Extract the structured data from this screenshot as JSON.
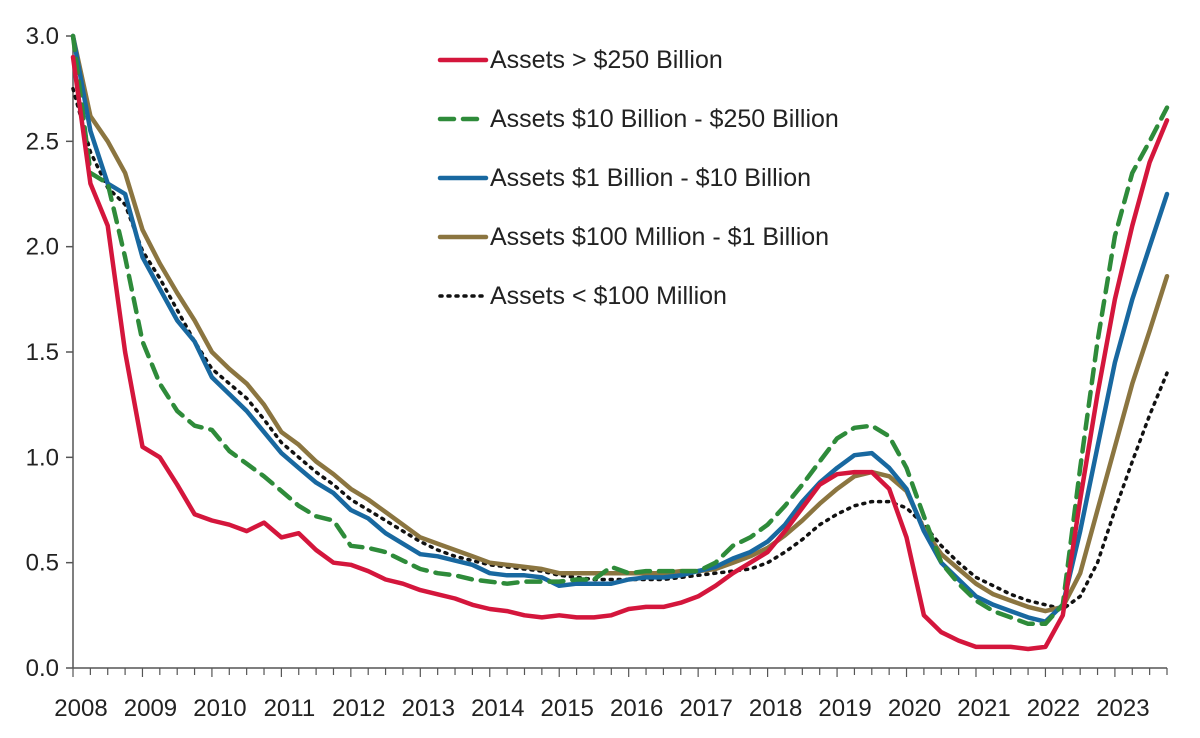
{
  "chart_data": {
    "type": "line",
    "title": "",
    "xlabel": "",
    "ylabel": "",
    "xlim": [
      2008.0,
      2023.75
    ],
    "ylim": [
      0,
      3.0
    ],
    "yticks": [
      "0.0",
      "0.5",
      "1.0",
      "1.5",
      "2.0",
      "2.5",
      "3.0"
    ],
    "xticks": [
      "2008",
      "2009",
      "2010",
      "2011",
      "2012",
      "2013",
      "2014",
      "2015",
      "2016",
      "2017",
      "2018",
      "2019",
      "2020",
      "2021",
      "2022",
      "2023"
    ],
    "grid": false,
    "legend_position": "top-center",
    "x": [
      2008.0,
      2008.25,
      2008.5,
      2008.75,
      2009.0,
      2009.25,
      2009.5,
      2009.75,
      2010.0,
      2010.25,
      2010.5,
      2010.75,
      2011.0,
      2011.25,
      2011.5,
      2011.75,
      2012.0,
      2012.25,
      2012.5,
      2012.75,
      2013.0,
      2013.25,
      2013.5,
      2013.75,
      2014.0,
      2014.25,
      2014.5,
      2014.75,
      2015.0,
      2015.25,
      2015.5,
      2015.75,
      2016.0,
      2016.25,
      2016.5,
      2016.75,
      2017.0,
      2017.25,
      2017.5,
      2017.75,
      2018.0,
      2018.25,
      2018.5,
      2018.75,
      2019.0,
      2019.25,
      2019.5,
      2019.75,
      2020.0,
      2020.25,
      2020.5,
      2020.75,
      2021.0,
      2021.25,
      2021.5,
      2021.75,
      2022.0,
      2022.25,
      2022.5,
      2022.75,
      2023.0,
      2023.25,
      2023.5,
      2023.75
    ],
    "series": [
      {
        "name": "Assets > $250 Billion",
        "color": "#d4163c",
        "style": "solid",
        "values": [
          2.9,
          2.3,
          2.1,
          1.5,
          1.05,
          1.0,
          0.87,
          0.73,
          0.7,
          0.68,
          0.65,
          0.69,
          0.62,
          0.64,
          0.56,
          0.5,
          0.49,
          0.46,
          0.42,
          0.4,
          0.37,
          0.35,
          0.33,
          0.3,
          0.28,
          0.27,
          0.25,
          0.24,
          0.25,
          0.24,
          0.24,
          0.25,
          0.28,
          0.29,
          0.29,
          0.31,
          0.34,
          0.39,
          0.45,
          0.5,
          0.55,
          0.65,
          0.76,
          0.87,
          0.92,
          0.93,
          0.93,
          0.85,
          0.62,
          0.25,
          0.17,
          0.13,
          0.1,
          0.1,
          0.1,
          0.09,
          0.1,
          0.25,
          0.8,
          1.3,
          1.75,
          2.1,
          2.4,
          2.6
        ]
      },
      {
        "name": "Assets  $10 Billion - $250 Billion",
        "color": "#2e8b3a",
        "style": "dashed",
        "values": [
          3.0,
          2.35,
          2.3,
          1.95,
          1.55,
          1.35,
          1.22,
          1.15,
          1.13,
          1.03,
          0.97,
          0.91,
          0.84,
          0.77,
          0.72,
          0.7,
          0.58,
          0.57,
          0.55,
          0.51,
          0.47,
          0.45,
          0.44,
          0.42,
          0.41,
          0.4,
          0.41,
          0.41,
          0.41,
          0.42,
          0.42,
          0.48,
          0.45,
          0.46,
          0.46,
          0.46,
          0.46,
          0.5,
          0.58,
          0.62,
          0.68,
          0.77,
          0.87,
          0.98,
          1.09,
          1.14,
          1.15,
          1.1,
          0.95,
          0.72,
          0.5,
          0.4,
          0.32,
          0.27,
          0.24,
          0.21,
          0.21,
          0.3,
          0.95,
          1.55,
          2.05,
          2.35,
          2.5,
          2.66
        ]
      },
      {
        "name": "Assets $1 Billion - $10 Billion",
        "color": "#1868a0",
        "style": "solid",
        "values": [
          3.0,
          2.55,
          2.3,
          2.25,
          1.95,
          1.8,
          1.65,
          1.55,
          1.38,
          1.3,
          1.22,
          1.12,
          1.02,
          0.95,
          0.88,
          0.83,
          0.75,
          0.71,
          0.64,
          0.59,
          0.54,
          0.53,
          0.51,
          0.49,
          0.45,
          0.44,
          0.44,
          0.43,
          0.39,
          0.4,
          0.4,
          0.4,
          0.42,
          0.43,
          0.43,
          0.44,
          0.46,
          0.48,
          0.52,
          0.55,
          0.6,
          0.68,
          0.79,
          0.88,
          0.95,
          1.01,
          1.02,
          0.95,
          0.85,
          0.65,
          0.5,
          0.42,
          0.34,
          0.3,
          0.27,
          0.24,
          0.22,
          0.3,
          0.65,
          1.05,
          1.45,
          1.75,
          2.0,
          2.25
        ]
      },
      {
        "name": "Assets $100 Million - $1 Billion",
        "color": "#8b7540",
        "style": "solid",
        "values": [
          3.0,
          2.62,
          2.5,
          2.35,
          2.08,
          1.92,
          1.78,
          1.65,
          1.5,
          1.42,
          1.35,
          1.25,
          1.12,
          1.06,
          0.98,
          0.92,
          0.85,
          0.8,
          0.74,
          0.68,
          0.62,
          0.59,
          0.56,
          0.53,
          0.5,
          0.49,
          0.48,
          0.47,
          0.45,
          0.45,
          0.45,
          0.45,
          0.45,
          0.45,
          0.45,
          0.46,
          0.46,
          0.47,
          0.5,
          0.53,
          0.57,
          0.63,
          0.7,
          0.78,
          0.85,
          0.91,
          0.93,
          0.91,
          0.84,
          0.66,
          0.54,
          0.47,
          0.4,
          0.35,
          0.32,
          0.29,
          0.27,
          0.29,
          0.45,
          0.75,
          1.05,
          1.35,
          1.6,
          1.86
        ]
      },
      {
        "name": "Assets < $100 Million",
        "color": "#111111",
        "style": "dotted",
        "values": [
          2.75,
          2.45,
          2.28,
          2.2,
          1.98,
          1.85,
          1.7,
          1.55,
          1.42,
          1.35,
          1.28,
          1.18,
          1.07,
          1.0,
          0.93,
          0.87,
          0.8,
          0.75,
          0.7,
          0.65,
          0.6,
          0.56,
          0.53,
          0.51,
          0.49,
          0.48,
          0.47,
          0.46,
          0.44,
          0.43,
          0.42,
          0.42,
          0.42,
          0.42,
          0.42,
          0.43,
          0.44,
          0.45,
          0.46,
          0.47,
          0.5,
          0.55,
          0.61,
          0.68,
          0.73,
          0.77,
          0.79,
          0.79,
          0.76,
          0.68,
          0.58,
          0.5,
          0.43,
          0.39,
          0.35,
          0.32,
          0.3,
          0.28,
          0.34,
          0.5,
          0.75,
          0.98,
          1.2,
          1.4
        ]
      }
    ]
  }
}
